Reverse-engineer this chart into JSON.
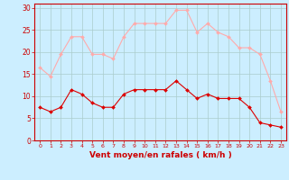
{
  "hours": [
    0,
    1,
    2,
    3,
    4,
    5,
    6,
    7,
    8,
    9,
    10,
    11,
    12,
    13,
    14,
    15,
    16,
    17,
    18,
    19,
    20,
    21,
    22,
    23
  ],
  "wind_avg": [
    7.5,
    6.5,
    7.5,
    11.5,
    10.5,
    8.5,
    7.5,
    7.5,
    10.5,
    11.5,
    11.5,
    11.5,
    11.5,
    13.5,
    11.5,
    9.5,
    10.5,
    9.5,
    9.5,
    9.5,
    7.5,
    4.0,
    3.5,
    3.0
  ],
  "wind_gust": [
    16.5,
    14.5,
    19.5,
    23.5,
    23.5,
    19.5,
    19.5,
    18.5,
    23.5,
    26.5,
    26.5,
    26.5,
    26.5,
    29.5,
    29.5,
    24.5,
    26.5,
    24.5,
    23.5,
    21.0,
    21.0,
    19.5,
    13.5,
    6.5
  ],
  "avg_color": "#dd0000",
  "gust_color": "#ffaaaa",
  "bg_color": "#cceeff",
  "grid_color": "#aacccc",
  "axis_color": "#cc0000",
  "xlabel": "Vent moyen/en rafales ( km/h )",
  "ylim": [
    0,
    31
  ],
  "yticks": [
    0,
    5,
    10,
    15,
    20,
    25,
    30
  ],
  "xlim": [
    -0.5,
    23.5
  ]
}
